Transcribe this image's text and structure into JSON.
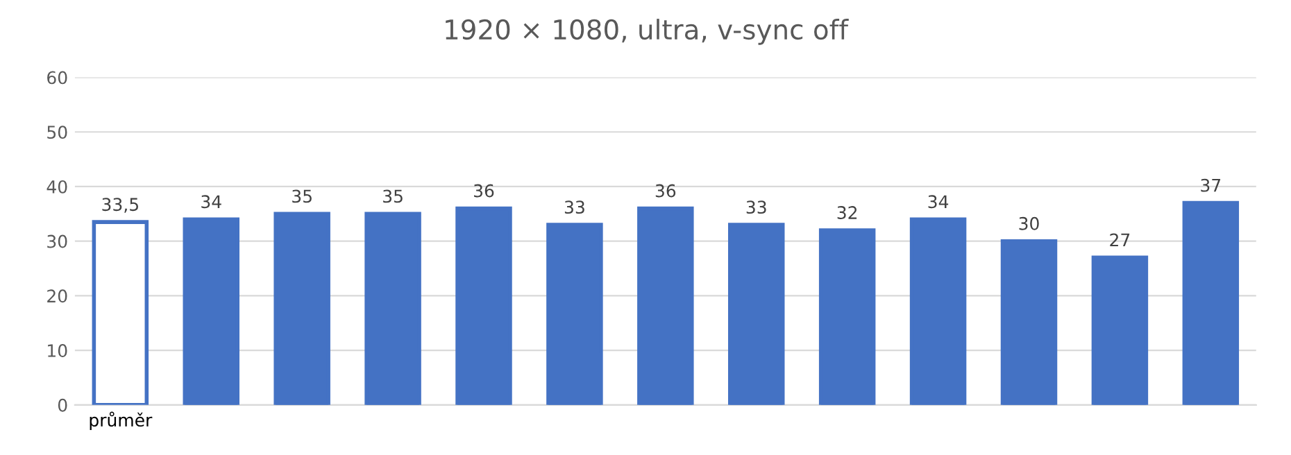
{
  "chart_data": {
    "type": "bar",
    "title": "1920 × 1080, ultra, v-sync off",
    "categories": [
      "průměr",
      null,
      null,
      null,
      null,
      null,
      null,
      null,
      null,
      null,
      null,
      null,
      null
    ],
    "values": [
      33.5,
      34,
      35,
      35,
      36,
      33,
      36,
      33,
      32,
      34,
      30,
      27,
      37
    ],
    "value_labels": [
      "33,5",
      "34",
      "35",
      "35",
      "36",
      "33",
      "36",
      "33",
      "32",
      "34",
      "30",
      "27",
      "37"
    ],
    "color": "#4472c4",
    "colors": [
      "#ffffff",
      "#4472c4",
      "#4472c4",
      "#4472c4",
      "#4472c4",
      "#4472c4",
      "#4472c4",
      "#4472c4",
      "#4472c4",
      "#4472c4",
      "#4472c4",
      "#4472c4",
      "#4472c4"
    ],
    "ylim": [
      0,
      60
    ],
    "yticks": [
      0,
      10,
      20,
      30,
      40,
      50,
      60
    ],
    "grid": "y",
    "legend": false
  }
}
